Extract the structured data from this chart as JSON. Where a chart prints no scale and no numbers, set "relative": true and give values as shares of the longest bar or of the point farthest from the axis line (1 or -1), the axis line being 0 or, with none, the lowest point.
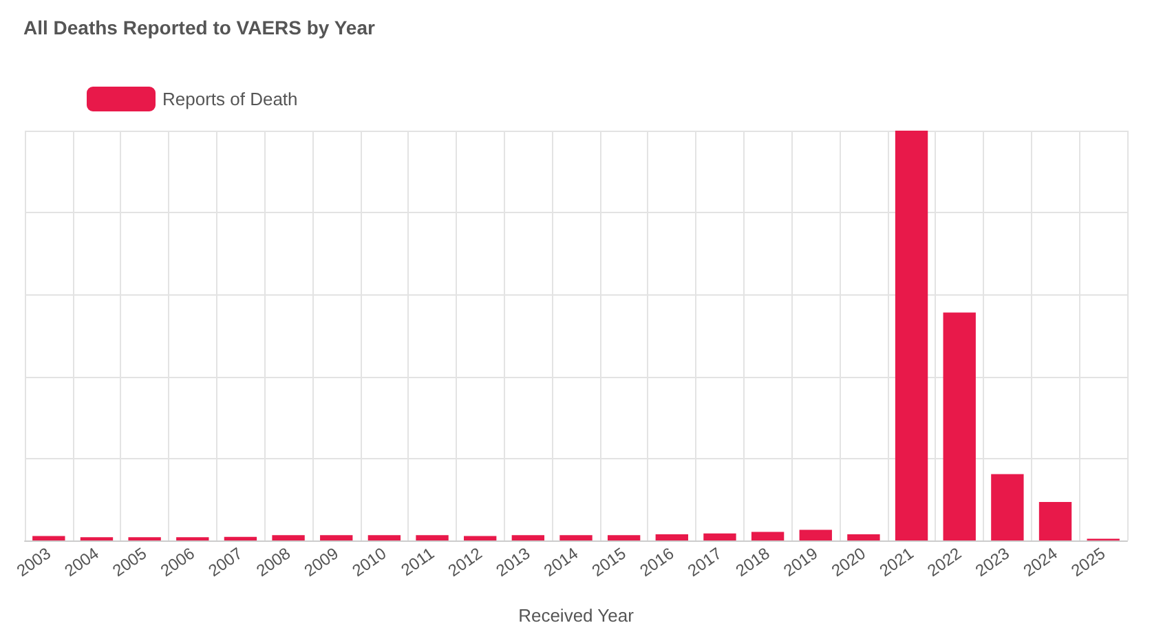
{
  "chart_data": {
    "type": "bar",
    "title": "All Deaths Reported to VAERS by Year",
    "xlabel": "Received Year",
    "categories": [
      "2003",
      "2004",
      "2005",
      "2006",
      "2007",
      "2008",
      "2009",
      "2010",
      "2011",
      "2012",
      "2013",
      "2014",
      "2015",
      "2016",
      "2017",
      "2018",
      "2019",
      "2020",
      "2021",
      "2022",
      "2023",
      "2024",
      "2025"
    ],
    "series": [
      {
        "name": "Reports of Death",
        "color": "#e8194a",
        "values": [
          0.011,
          0.008,
          0.008,
          0.008,
          0.009,
          0.013,
          0.013,
          0.013,
          0.013,
          0.011,
          0.013,
          0.013,
          0.013,
          0.015,
          0.017,
          0.021,
          0.026,
          0.015,
          1,
          0.556,
          0.162,
          0.094,
          0.004
        ]
      }
    ],
    "relative": true,
    "grid": true,
    "legend": "top left"
  }
}
